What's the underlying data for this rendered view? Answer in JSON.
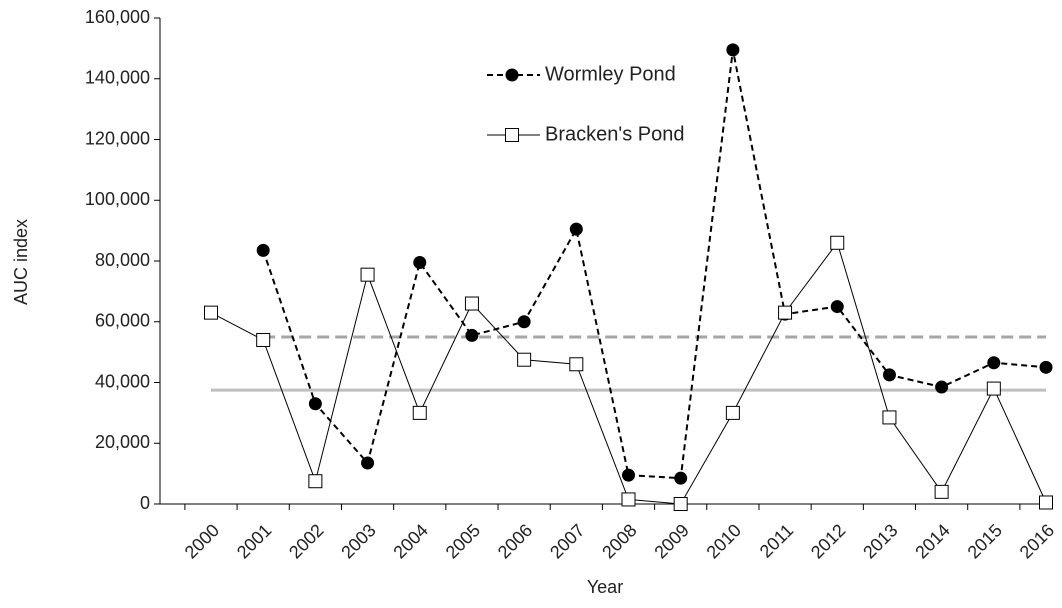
{
  "chart_data": {
    "type": "line",
    "x_label": "Year",
    "y_label": "AUC index",
    "categories": [
      "2000",
      "2001",
      "2002",
      "2003",
      "2004",
      "2005",
      "2006",
      "2007",
      "2008",
      "2009",
      "2010",
      "2011",
      "2012",
      "2013",
      "2014",
      "2015",
      "2016"
    ],
    "series": [
      {
        "name": "Wormley Pond",
        "color": "#000000",
        "dash": "dashed",
        "marker": "filled-circle",
        "values": [
          null,
          83500,
          33000,
          13500,
          79500,
          55500,
          60000,
          90500,
          9500,
          8500,
          149500,
          62500,
          65000,
          42500,
          38500,
          46500,
          45000
        ]
      },
      {
        "name": "Bracken's Pond",
        "color": "#000000",
        "dash": "solid",
        "marker": "open-square",
        "values": [
          63000,
          54000,
          7500,
          75500,
          30000,
          66000,
          47500,
          46000,
          1500,
          0,
          30000,
          63000,
          86000,
          28500,
          4000,
          38000,
          500
        ]
      }
    ],
    "reference_lines": [
      {
        "value": 55000,
        "color": "#a6a6a6",
        "dash": "dashed",
        "from_index": 1
      },
      {
        "value": 37500,
        "color": "#bfbfbf",
        "dash": "solid",
        "from_index": 0
      }
    ],
    "ylim": [
      0,
      160000
    ],
    "yticks": [
      0,
      {
        "value": 20000,
        "label": "20,000"
      },
      {
        "value": 40000,
        "label": "40,000"
      },
      {
        "value": 60000,
        "label": "60,000"
      },
      {
        "value": 80000,
        "label": "80,000"
      },
      {
        "value": 100000,
        "label": "100,000"
      },
      {
        "value": 120000,
        "label": "120,000"
      },
      {
        "value": 140000,
        "label": "140,000"
      },
      {
        "value": 160000,
        "label": "160,000"
      }
    ],
    "grid": false,
    "legend": "top"
  }
}
